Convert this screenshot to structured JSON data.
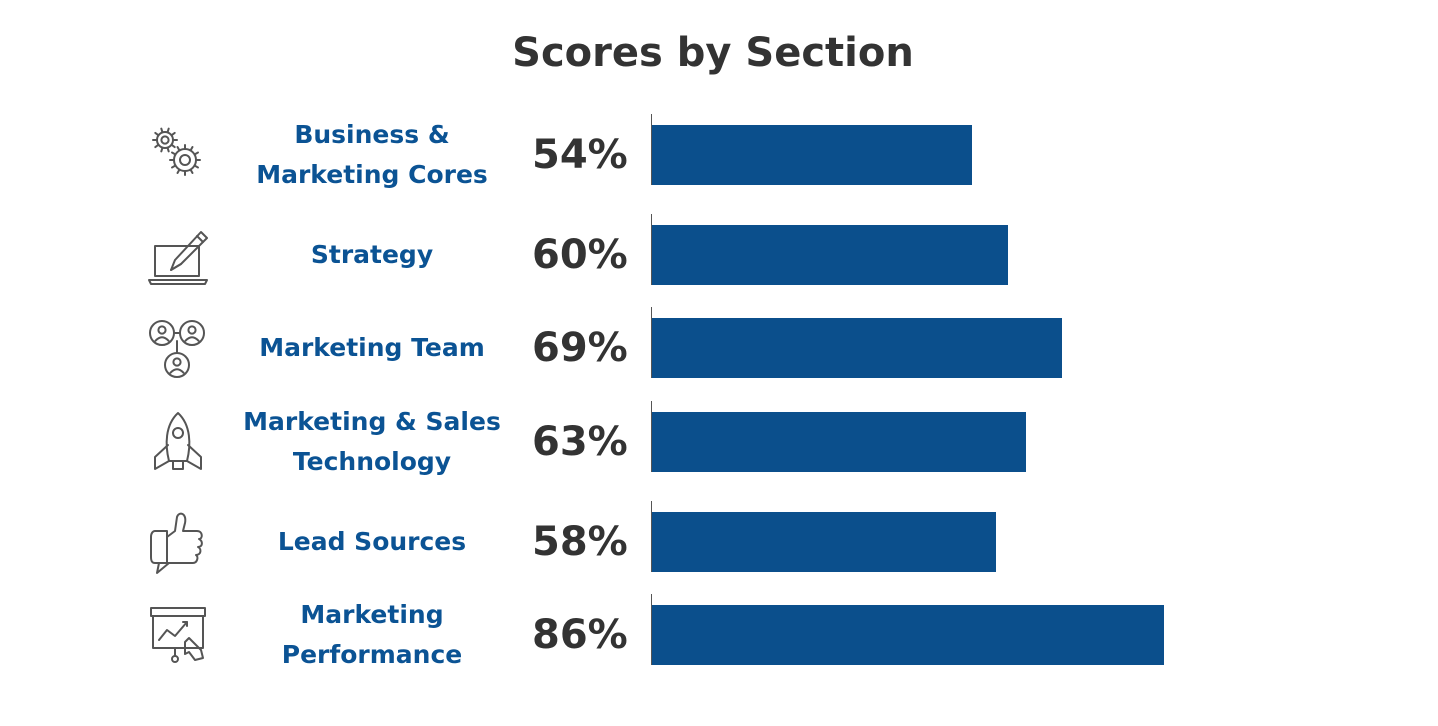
{
  "chart_data": {
    "type": "bar",
    "orientation": "horizontal",
    "title": "Scores by Section",
    "categories": [
      "Business & Marketing Cores",
      "Strategy",
      "Marketing Team",
      "Marketing & Sales Technology",
      "Lead Sources",
      "Marketing Performance"
    ],
    "values": [
      54,
      60,
      69,
      63,
      58,
      86
    ],
    "value_labels": [
      "54%",
      "60%",
      "69%",
      "63%",
      "58%",
      "86%"
    ],
    "icons": [
      "gears-icon",
      "laptop-pencil-icon",
      "team-network-icon",
      "rocket-icon",
      "thumbs-up-speech-icon",
      "presentation-chart-icon"
    ],
    "xlim": [
      0,
      100
    ],
    "grid": false,
    "bar_color": "#0b4f8c",
    "label_color": "#0b5394"
  }
}
